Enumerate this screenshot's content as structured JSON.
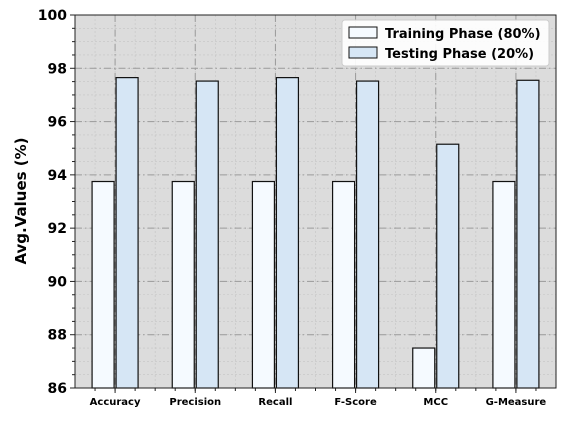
{
  "chart_data": {
    "type": "bar",
    "categories": [
      "Accuracy",
      "Precision",
      "Recall",
      "F-Score",
      "MCC",
      "G-Measure"
    ],
    "series": [
      {
        "name": "Training Phase (80%)",
        "values": [
          93.75,
          93.75,
          93.75,
          93.75,
          87.5,
          93.75
        ],
        "color": "#f5faff"
      },
      {
        "name": "Testing Phase (20%)",
        "values": [
          97.65,
          97.52,
          97.65,
          97.52,
          95.15,
          97.55
        ],
        "color": "#d6e6f5"
      }
    ],
    "title": "",
    "xlabel": "",
    "ylabel": "Avg.Values (%)",
    "ylim": [
      86,
      100
    ],
    "yticks": [
      86,
      88,
      90,
      92,
      94,
      96,
      98,
      100
    ],
    "grid": true,
    "legend_position": "top-right",
    "background_color": "#dcdcdc"
  }
}
